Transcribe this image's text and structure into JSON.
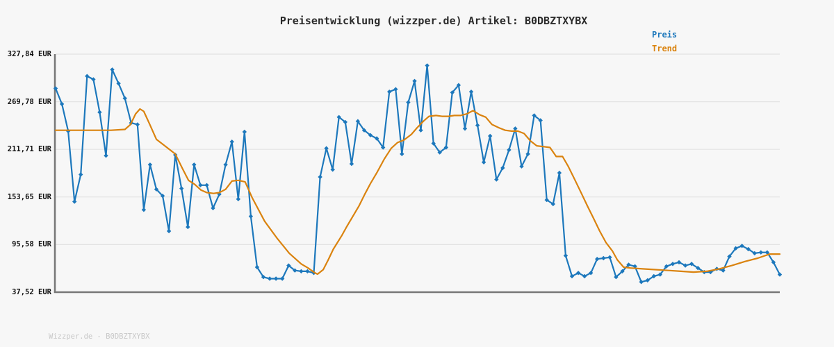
{
  "header": {
    "title": "Preisentwicklung (wizzper.de) Artikel: B0DBZTXYBX"
  },
  "legend": {
    "items": [
      {
        "label": "Preis",
        "color": "#1d78bc"
      },
      {
        "label": "Trend",
        "color": "#da830f"
      }
    ]
  },
  "footer": {
    "watermark": "Wizzper.de - B0DBZTXYBX"
  },
  "colors": {
    "background": "#f7f7f7",
    "grid": "#e3e3e3",
    "spine": "#777777",
    "title": "#2b2b2b",
    "axis_label": "#111111",
    "watermark": "#c8c8c8"
  },
  "chart_data": {
    "type": "line",
    "title": "Preisentwicklung (wizzper.de) Artikel: B0DBZTXYBX",
    "currency": "EUR",
    "grid": true,
    "legend_position": "top-right",
    "x_axis": {
      "visible": false,
      "tick_labels": []
    },
    "y_axis": {
      "range": [
        37.52,
        327.84
      ],
      "ticks": [
        327.84,
        269.78,
        211.71,
        153.65,
        95.58,
        37.52
      ],
      "tick_labels": [
        "327,84 EUR",
        "269,78 EUR",
        "211,71 EUR",
        "153,65 EUR",
        "95,58 EUR",
        "37,52 EUR"
      ]
    },
    "series": [
      {
        "name": "Preis",
        "color": "#1d78bc",
        "marker": "diamond",
        "values": [
          286,
          267,
          234,
          148,
          181,
          301,
          297,
          257,
          204,
          309,
          292,
          274,
          244,
          242,
          138,
          193,
          163,
          155,
          112,
          205,
          164,
          117,
          193,
          168,
          168,
          140,
          157,
          193,
          221,
          151,
          233,
          130,
          68,
          56,
          54,
          54,
          54,
          70,
          64,
          63,
          63,
          61,
          178,
          213,
          187,
          251,
          245,
          194,
          246,
          235,
          229,
          225,
          214,
          282,
          285,
          206,
          269,
          295,
          235,
          314,
          219,
          208,
          214,
          281,
          290,
          237,
          282,
          241,
          196,
          228,
          175,
          189,
          211,
          237,
          191,
          206,
          253,
          247,
          150,
          145,
          183,
          82,
          57,
          61,
          57,
          61,
          78,
          79,
          80,
          56,
          63,
          71,
          69,
          50,
          52,
          57,
          59,
          69,
          72,
          74,
          70,
          72,
          67,
          62,
          62,
          66,
          64,
          81,
          91,
          94,
          90,
          85,
          86,
          86,
          74,
          59
        ]
      },
      {
        "name": "Trend",
        "color": "#da830f",
        "marker": "none",
        "points": [
          [
            0,
            235
          ],
          [
            4.4,
            235
          ],
          [
            8.8,
            235
          ],
          [
            11,
            236
          ],
          [
            11.9,
            242
          ],
          [
            12.7,
            255
          ],
          [
            13.4,
            261
          ],
          [
            14,
            258
          ],
          [
            14.9,
            243
          ],
          [
            16,
            224
          ],
          [
            17.5,
            215
          ],
          [
            19,
            206
          ],
          [
            20.1,
            189
          ],
          [
            21.1,
            174
          ],
          [
            22.1,
            169
          ],
          [
            23.1,
            162
          ],
          [
            24,
            159
          ],
          [
            25.1,
            158
          ],
          [
            26,
            159
          ],
          [
            27,
            163
          ],
          [
            28,
            173
          ],
          [
            29,
            174
          ],
          [
            30.1,
            172
          ],
          [
            31.2,
            153
          ],
          [
            33.2,
            124
          ],
          [
            35.2,
            103
          ],
          [
            37.1,
            85
          ],
          [
            39,
            72
          ],
          [
            40.1,
            67
          ],
          [
            41.2,
            61
          ],
          [
            41.6,
            59.5
          ],
          [
            42.5,
            65
          ],
          [
            43.3,
            77
          ],
          [
            44.1,
            90
          ],
          [
            45.4,
            106
          ],
          [
            46.2,
            117
          ],
          [
            47.2,
            130
          ],
          [
            48.2,
            143
          ],
          [
            49.1,
            157
          ],
          [
            50,
            170
          ],
          [
            51,
            183
          ],
          [
            52.2,
            200
          ],
          [
            53.3,
            213
          ],
          [
            54.3,
            220
          ],
          [
            55.3,
            223
          ],
          [
            56.5,
            230
          ],
          [
            57.4,
            238
          ],
          [
            58.4,
            246
          ],
          [
            59.3,
            252
          ],
          [
            60.4,
            253
          ],
          [
            61.4,
            252
          ],
          [
            62.4,
            252
          ],
          [
            63.3,
            253
          ],
          [
            64.3,
            253
          ],
          [
            65.3,
            255
          ],
          [
            66.3,
            259
          ],
          [
            67.3,
            254
          ],
          [
            68.3,
            251
          ],
          [
            69.3,
            242
          ],
          [
            70.4,
            238
          ],
          [
            71.4,
            235
          ],
          [
            72.4,
            234
          ],
          [
            73.4,
            234
          ],
          [
            74.4,
            231
          ],
          [
            75.4,
            222
          ],
          [
            76.4,
            216
          ],
          [
            77.5,
            215
          ],
          [
            78.5,
            214
          ],
          [
            79.5,
            203
          ],
          [
            80.5,
            203
          ],
          [
            81.4,
            191
          ],
          [
            82.5,
            174
          ],
          [
            83.5,
            158
          ],
          [
            84.5,
            142
          ],
          [
            85.4,
            128
          ],
          [
            86.4,
            112
          ],
          [
            87.4,
            98
          ],
          [
            88.4,
            88
          ],
          [
            89.2,
            77
          ],
          [
            90.2,
            68
          ],
          [
            91.3,
            67
          ],
          [
            93.2,
            66
          ],
          [
            95.2,
            65
          ],
          [
            97.3,
            64
          ],
          [
            99.3,
            63
          ],
          [
            101.3,
            62
          ],
          [
            103.4,
            63
          ],
          [
            105.4,
            66
          ],
          [
            107.4,
            70
          ],
          [
            109.5,
            75
          ],
          [
            111.5,
            79
          ],
          [
            113.4,
            84
          ],
          [
            115,
            84
          ]
        ]
      }
    ]
  }
}
